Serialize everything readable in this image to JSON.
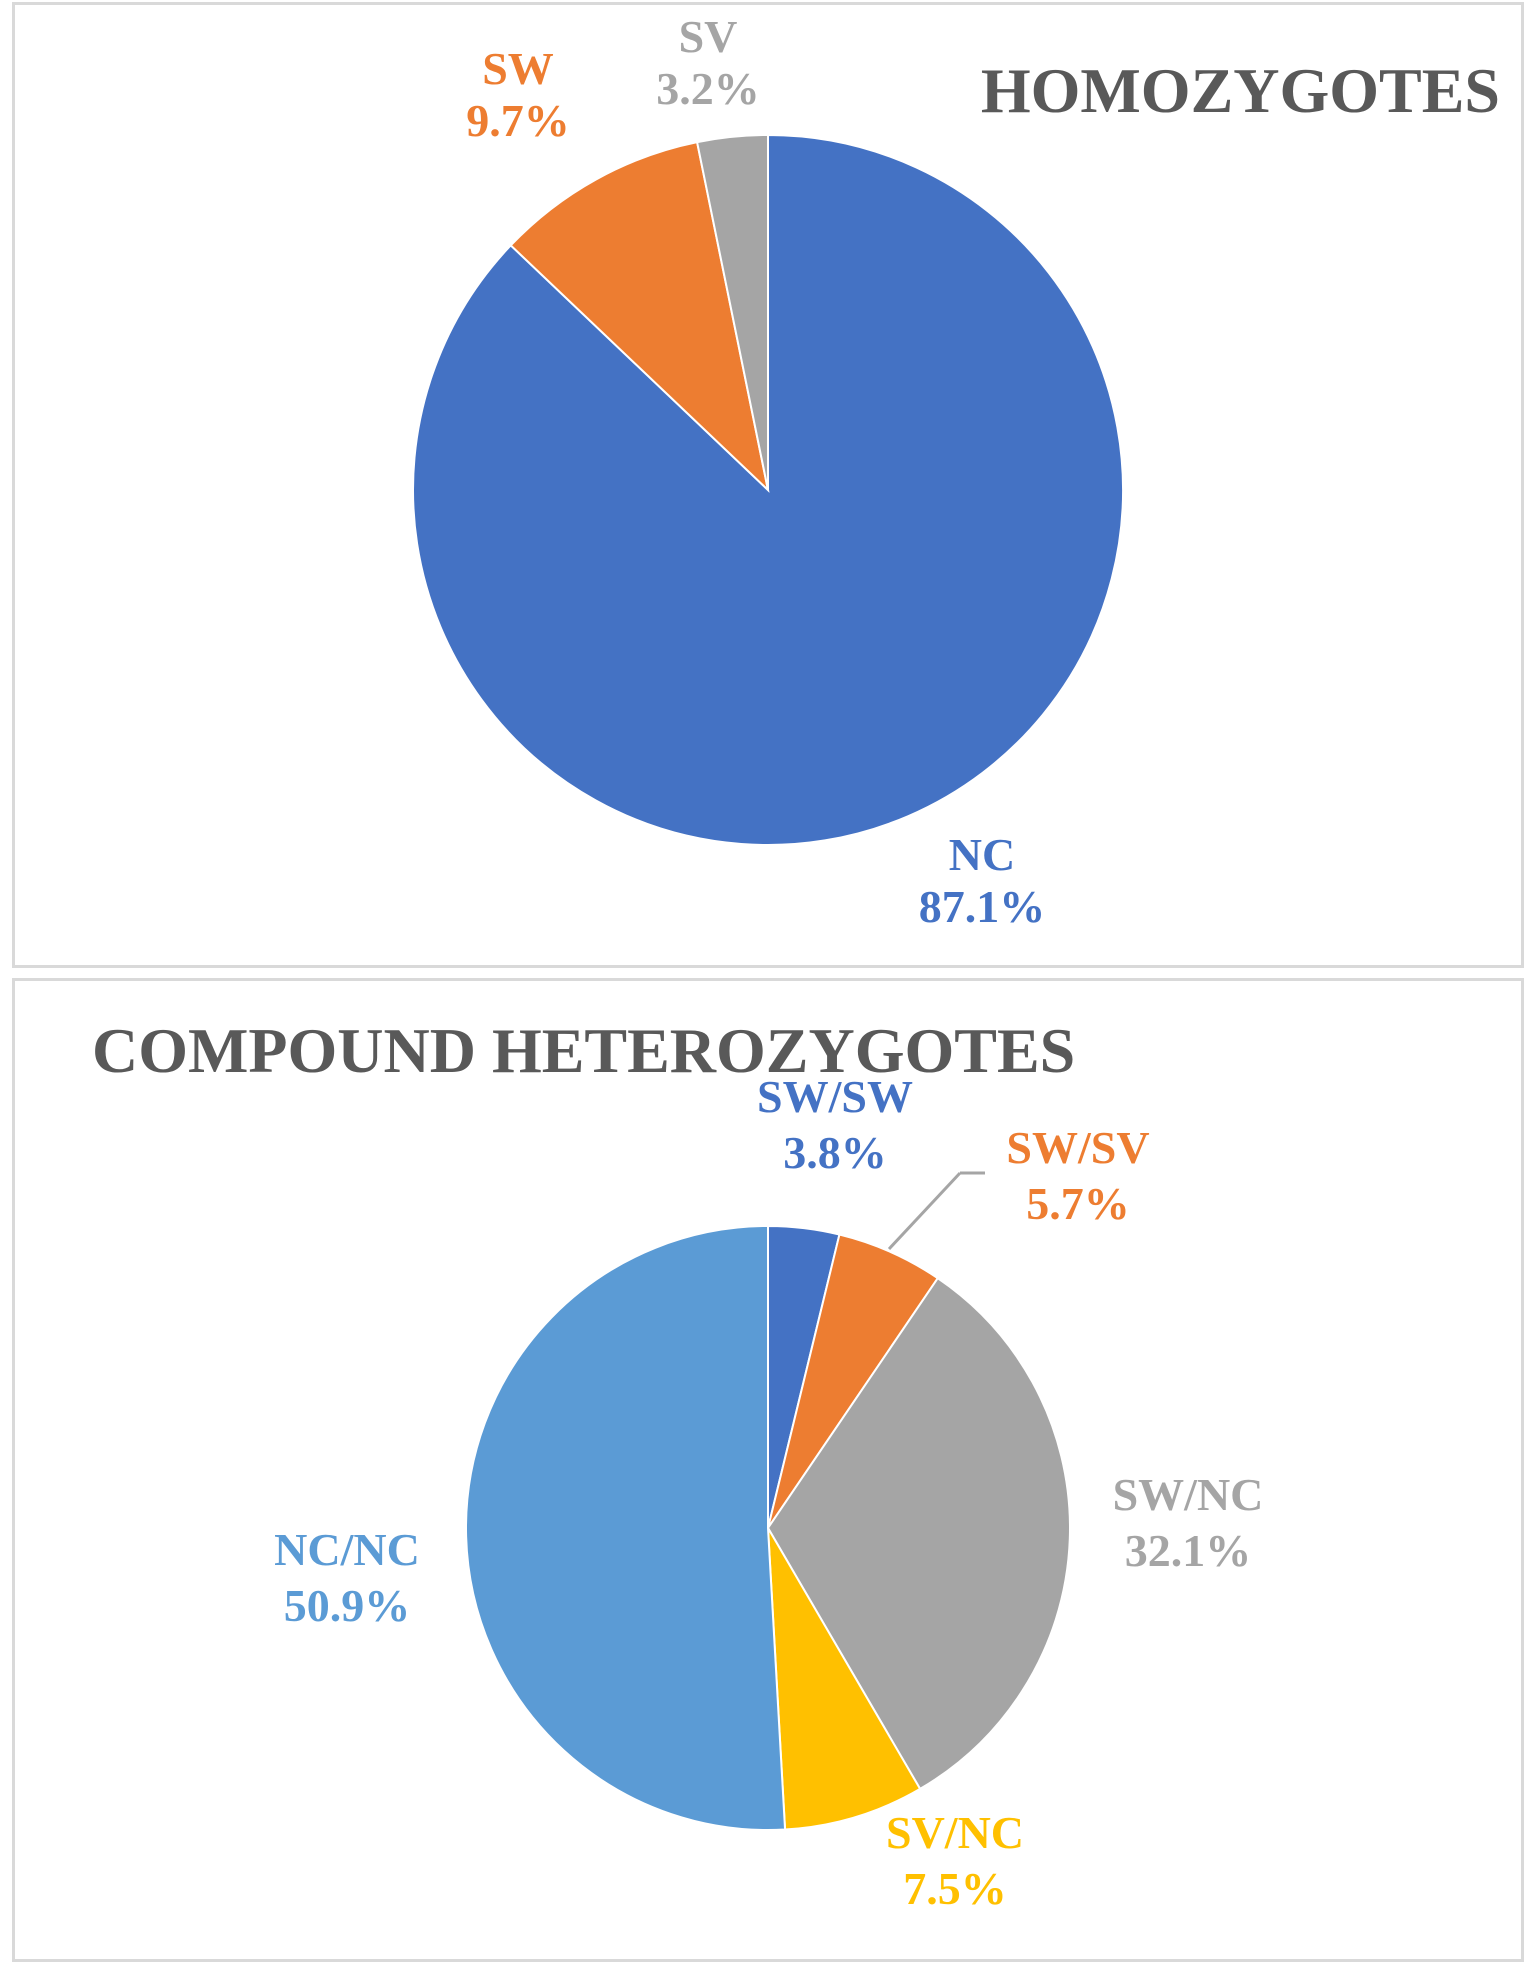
{
  "chart_data": [
    {
      "type": "pie",
      "title": "HOMOZYGOTES",
      "start_angle_deg": 0,
      "slices": [
        {
          "label": "NC",
          "value": 87.1,
          "value_label": "87.1%",
          "color": "#4472c4"
        },
        {
          "label": "SW",
          "value": 9.7,
          "value_label": "9.7%",
          "color": "#ed7d31"
        },
        {
          "label": "SV",
          "value": 3.2,
          "value_label": "3.2%",
          "color": "#a5a5a5"
        }
      ]
    },
    {
      "type": "pie",
      "title": "COMPOUND HETEROZYGOTES",
      "start_angle_deg": 0,
      "slices": [
        {
          "label": "SW/SW",
          "value": 3.8,
          "value_label": "3.8%",
          "color": "#4472c4"
        },
        {
          "label": "SW/SV",
          "value": 5.7,
          "value_label": "5.7%",
          "color": "#ed7d31"
        },
        {
          "label": "SW/NC",
          "value": 32.1,
          "value_label": "32.1%",
          "color": "#a5a5a5"
        },
        {
          "label": "SV/NC",
          "value": 7.5,
          "value_label": "7.5%",
          "color": "#ffc000"
        },
        {
          "label": "NC/NC",
          "value": 50.9,
          "value_label": "50.9%",
          "color": "#5b9bd5"
        }
      ]
    }
  ],
  "colors": {
    "title": "#595959",
    "leader_line": "#a5a5a5",
    "panel_border": "#d9d9d9"
  }
}
